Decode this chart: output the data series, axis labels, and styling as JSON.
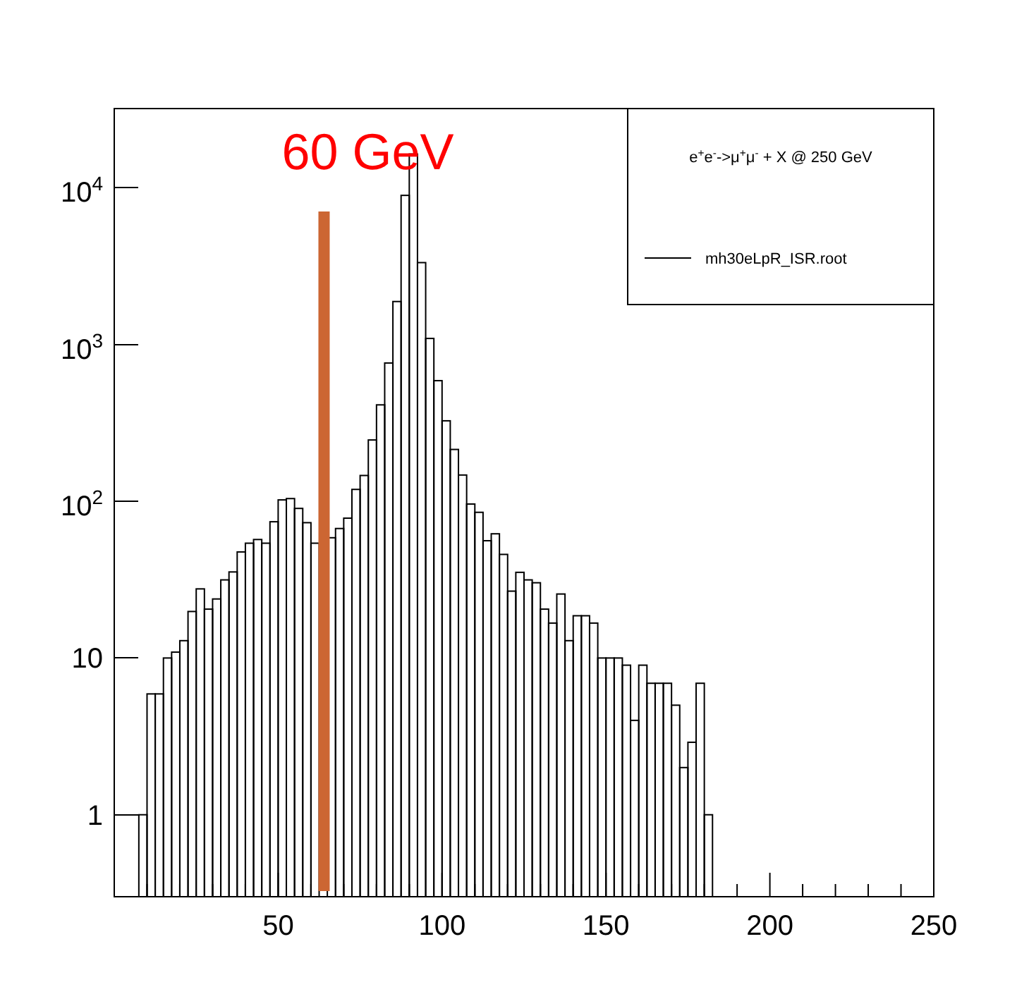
{
  "chart_data": {
    "type": "histogram",
    "bins": [
      7.5,
      10,
      12.5,
      15,
      17.5,
      20,
      22.5,
      25,
      27.5,
      30,
      32.5,
      35,
      37.5,
      40,
      42.5,
      45,
      47.5,
      50,
      52.5,
      55,
      57.5,
      60,
      62.5,
      65,
      67.5,
      70,
      72.5,
      75,
      77.5,
      80,
      82.5,
      85,
      87.5,
      90,
      92.5,
      95,
      97.5,
      100,
      102.5,
      105,
      107.5,
      110,
      112.5,
      115,
      117.5,
      120,
      122.5,
      125,
      127.5,
      130,
      132.5,
      135,
      137.5,
      140,
      142.5,
      145,
      147.5,
      150,
      152.5,
      155,
      157.5,
      160,
      162.5,
      165,
      167.5,
      170,
      172.5,
      175,
      177.5,
      180,
      182.5
    ],
    "series": [
      {
        "name": "mh30eLpR_ISR.root",
        "color": "#000000",
        "values": [
          1,
          5.9,
          5.9,
          10,
          10.9,
          12.9,
          19.8,
          27.6,
          20.5,
          23.8,
          31.5,
          35.4,
          47.5,
          54,
          57,
          54,
          74,
          102,
          104,
          90,
          73,
          54,
          null,
          58.5,
          67,
          78,
          119,
          146,
          246,
          412,
          762,
          1880,
          8940,
          16400,
          3330,
          1093,
          588,
          326,
          214,
          147,
          96,
          85,
          56,
          62,
          45.8,
          26.7,
          35.2,
          31.5,
          30.2,
          20.5,
          16.7,
          25.6,
          12.9,
          18.6,
          18.6,
          16.7,
          10,
          10,
          10,
          9,
          4,
          9,
          6.9,
          6.9,
          6.9,
          5,
          2,
          2.9,
          6.9,
          1
        ]
      }
    ],
    "legend_title": "e$^{+}$e$^{-}$->μ$^{+}$μ$^{-}$ + X @ 250 GeV",
    "legend": "top right",
    "log": "y",
    "grid": false,
    "xlim": [
      0,
      250
    ],
    "ylim": [
      0.3,
      32000
    ],
    "xticks": [
      {
        "value": 10,
        "label": null
      },
      {
        "value": 20,
        "label": null
      },
      {
        "value": 30,
        "label": null
      },
      {
        "value": 40,
        "label": null
      },
      50,
      {
        "value": 60,
        "label": null
      },
      {
        "value": 70,
        "label": null
      },
      {
        "value": 80,
        "label": null
      },
      {
        "value": 90,
        "label": null
      },
      100,
      {
        "value": 110,
        "label": null
      },
      {
        "value": 120,
        "label": null
      },
      {
        "value": 130,
        "label": null
      },
      {
        "value": 140,
        "label": null
      },
      150,
      {
        "value": 160,
        "label": null
      },
      {
        "value": 170,
        "label": null
      },
      {
        "value": 180,
        "label": null
      },
      {
        "value": 190,
        "label": null
      },
      200,
      {
        "value": 210,
        "label": null
      },
      {
        "value": 220,
        "label": null
      },
      {
        "value": 230,
        "label": null
      },
      {
        "value": 240,
        "label": null
      },
      250
    ],
    "yticks": [
      1,
      10,
      {
        "value": 100,
        "label": "10$^{2}$"
      },
      {
        "value": 1000,
        "label": "10$^{3}$"
      },
      {
        "value": 10000,
        "label": "10$^{4}$"
      }
    ],
    "ref_lines": [
      {
        "axis": "x",
        "value": 64,
        "label": "60 GeV",
        "color": "#cc6633"
      }
    ]
  }
}
